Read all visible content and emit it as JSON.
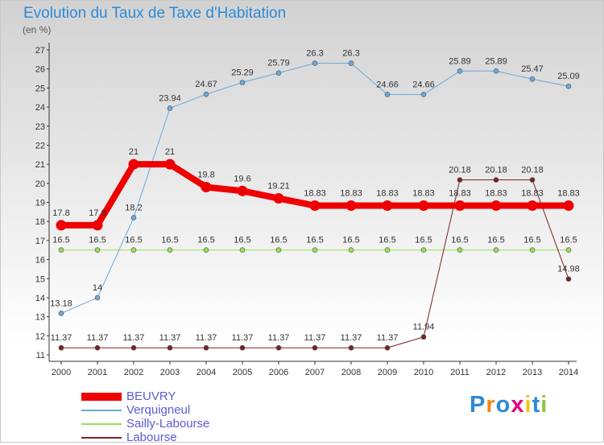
{
  "chart_data": {
    "type": "line",
    "title": "Evolution du Taux de Taxe d'Habitation",
    "unit_label": "(en %)",
    "x": [
      "2000",
      "2001",
      "2002",
      "2003",
      "2004",
      "2005",
      "2006",
      "2007",
      "2008",
      "2009",
      "2010",
      "2011",
      "2012",
      "2013",
      "2014"
    ],
    "ylim": [
      11,
      27
    ],
    "y_ticks": [
      11,
      12,
      13,
      14,
      15,
      16,
      17,
      18,
      19,
      20,
      21,
      22,
      23,
      24,
      25,
      26,
      27
    ],
    "grid": false,
    "legend_position": "bottom-left",
    "series": [
      {
        "name": "BEUVRY",
        "color": "#ee0000",
        "values": [
          17.8,
          17.8,
          21,
          21,
          19.8,
          19.6,
          19.21,
          18.83,
          18.83,
          18.83,
          18.83,
          18.83,
          18.83,
          18.83,
          18.83
        ],
        "labels": [
          "17.8",
          "17.8",
          "21",
          "21",
          "19.8",
          "19.6",
          "19.21",
          "18.83",
          "18.83",
          "18.83",
          "18.83",
          "18.83",
          "18.83",
          "18.83",
          "18.83"
        ]
      },
      {
        "name": "Verquigneul",
        "color": "#6aa8dc",
        "values": [
          13.18,
          14,
          18.2,
          23.94,
          24.67,
          25.29,
          25.79,
          26.3,
          26.3,
          24.66,
          24.66,
          25.89,
          25.89,
          25.47,
          25.09
        ],
        "labels": [
          "13.18",
          "14",
          "18.2",
          "23.94",
          "24.67",
          "25.29",
          "25.79",
          "26.3",
          "26.3",
          "24.66",
          "24.66",
          "25.89",
          "25.89",
          "25.47",
          "25.09"
        ]
      },
      {
        "name": "Sailly-Labourse",
        "color": "#99dd55",
        "values": [
          16.5,
          16.5,
          16.5,
          16.5,
          16.5,
          16.5,
          16.5,
          16.5,
          16.5,
          16.5,
          16.5,
          16.5,
          16.5,
          16.5,
          16.5
        ],
        "labels": [
          "16.5",
          "16.5",
          "16.5",
          "16.5",
          "16.5",
          "16.5",
          "16.5",
          "16.5",
          "16.5",
          "16.5",
          "16.5",
          "16.5",
          "16.5",
          "16.5",
          "16.5"
        ]
      },
      {
        "name": "Labourse",
        "color": "#7a2222",
        "values": [
          11.37,
          11.37,
          11.37,
          11.37,
          11.37,
          11.37,
          11.37,
          11.37,
          11.37,
          11.37,
          11.94,
          20.18,
          20.18,
          20.18,
          14.98
        ],
        "labels": [
          "11.37",
          "11.37",
          "11.37",
          "11.37",
          "11.37",
          "11.37",
          "11.37",
          "11.37",
          "11.37",
          "11.37",
          "11.94",
          "20.18",
          "20.18",
          "20.18",
          "14.98"
        ]
      }
    ]
  },
  "brand": {
    "letters": [
      "P",
      "r",
      "o",
      "x",
      "i",
      "t",
      "i"
    ],
    "colors": [
      "#2e8ad6",
      "#f08a1c",
      "#2e8ad6",
      "#e5007e",
      "#f0c419",
      "#2e8ad6",
      "#8cc63f"
    ]
  }
}
